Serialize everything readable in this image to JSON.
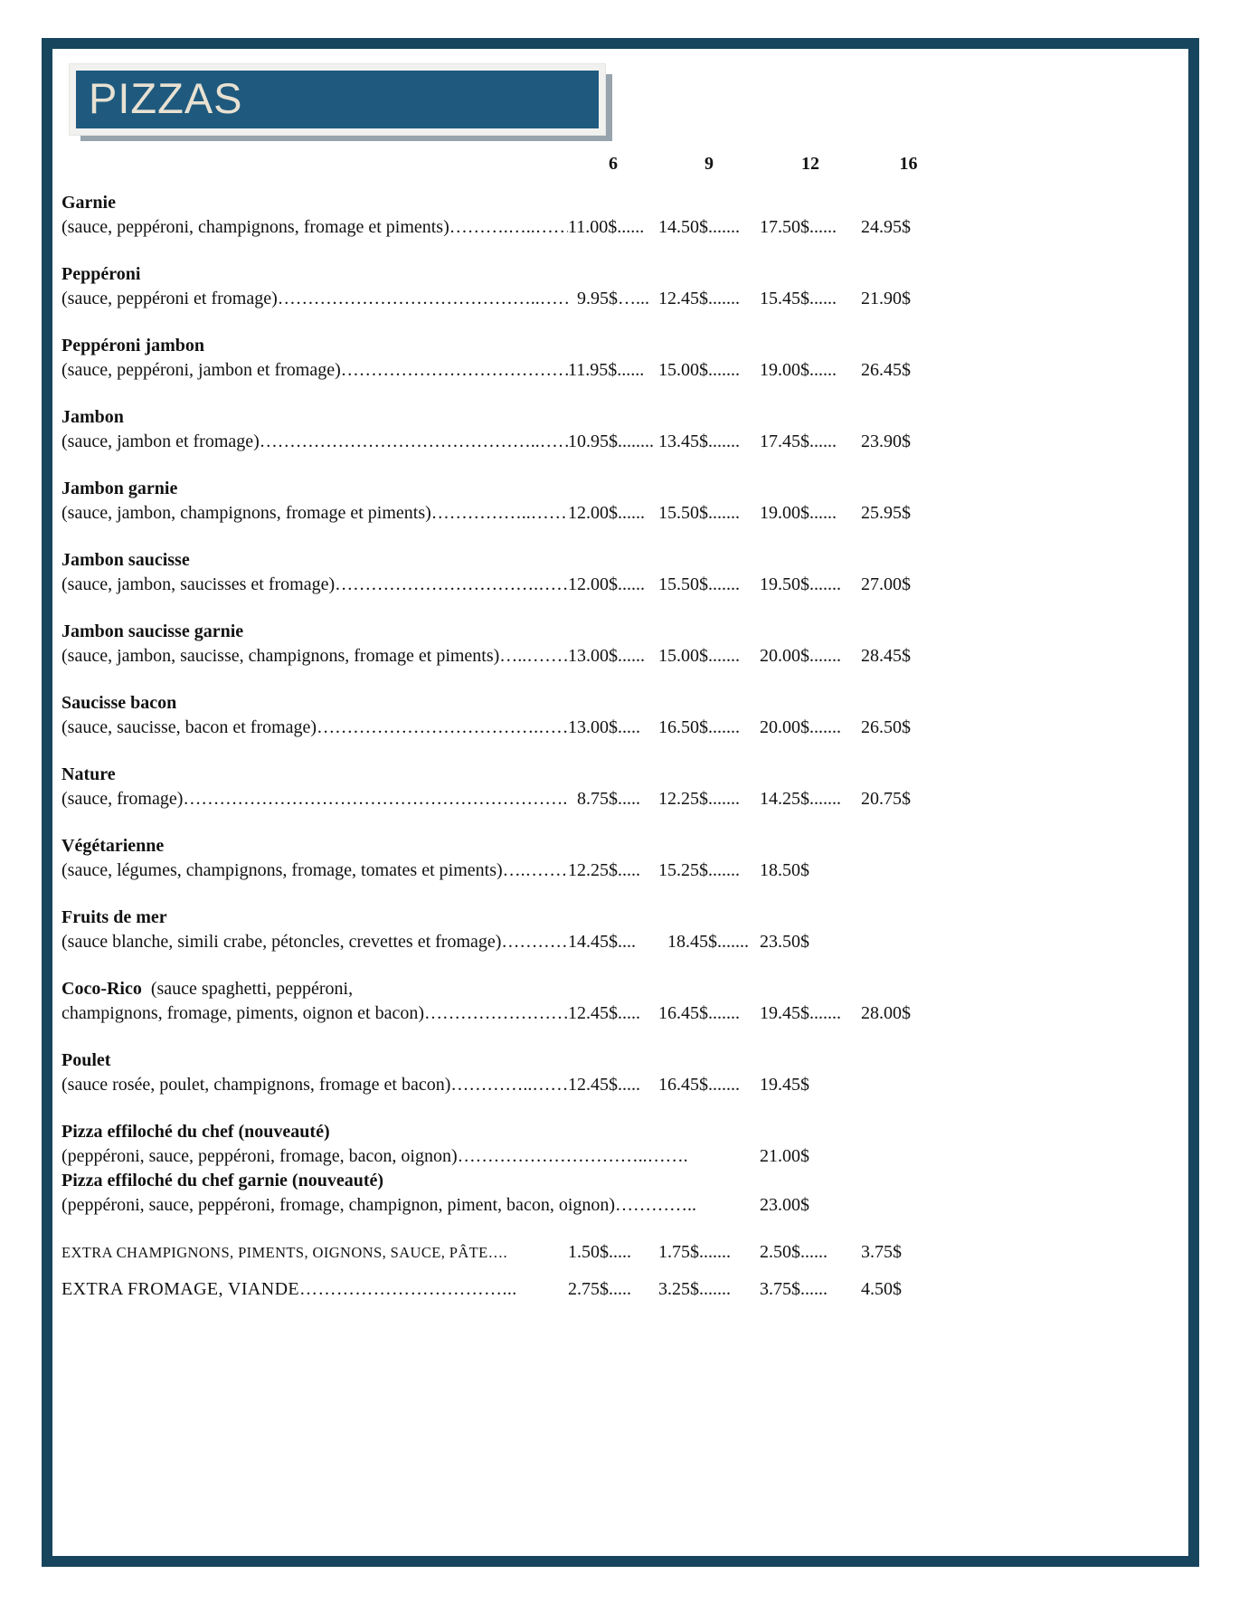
{
  "page": {
    "frame_color": "#17455e",
    "background": "#ffffff"
  },
  "header": {
    "title": "PIZZAS",
    "panel_bg": "#f1f1ef",
    "box_color": "#1f5a7e",
    "title_color": "#e8e1d2",
    "shadow_color": "#97a3ad"
  },
  "sizes": [
    "6",
    "9",
    "12",
    "16"
  ],
  "items": [
    {
      "name": "Garnie",
      "description": "(sauce, peppéroni, champignons, fromage et piments)……….…..………",
      "prices": {
        "6": "11.00$......",
        "9": "14.50$.......",
        "12": "17.50$......",
        "16": "24.95$"
      }
    },
    {
      "name": "Peppéroni",
      "description": "(sauce, peppéroni et fromage)……………………………………..………",
      "prices": {
        "6": "  9.95$…...",
        "9": "12.45$.......",
        "12": "15.45$......",
        "16": "21.90$"
      }
    },
    {
      "name": "Peppéroni jambon",
      "description": "(sauce, peppéroni, jambon et fromage)……………………………………",
      "prices": {
        "6": "11.95$......",
        "9": "15.00$.......",
        "12": "19.00$......",
        "16": "26.45$"
      }
    },
    {
      "name": "Jambon",
      "description": "(sauce, jambon et fromage)………………………………………..…………",
      "prices": {
        "6": "10.95$........",
        "9": "13.45$.......",
        "12": "17.45$......",
        "16": "23.90$"
      }
    },
    {
      "name": "Jambon garnie",
      "description": "(sauce, jambon, champignons, fromage et piments)……………..…………",
      "prices": {
        "6": "12.00$......",
        "9": "15.50$.......",
        "12": "19.00$......",
        "16": "25.95$"
      }
    },
    {
      "name": "Jambon saucisse",
      "description": "(sauce, jambon, saucisses et fromage)…………………………….…………",
      "prices": {
        "6": "12.00$......",
        "9": "15.50$.......",
        "12": "19.50$.......",
        "16": "27.00$"
      }
    },
    {
      "name": "Jambon saucisse garnie",
      "description": "(sauce, jambon, saucisse, champignons, fromage et piments)…..…………",
      "prices": {
        "6": "13.00$......",
        "9": "15.00$.......",
        "12": "20.00$.......",
        "16": "28.45$"
      }
    },
    {
      "name": "Saucisse bacon",
      "description": "(sauce, saucisse, bacon et fromage)……………………………….…………",
      "prices": {
        "6": "13.00$.....",
        "9": "16.50$.......",
        "12": "20.00$.......",
        "16": "26.50$"
      }
    },
    {
      "name": "Nature",
      "description": "(sauce, fromage)………………………………………………………...………",
      "prices": {
        "6": "  8.75$.....",
        "9": "12.25$.......",
        "12": "14.25$.......",
        "16": "20.75$"
      }
    },
    {
      "name": "Végétarienne",
      "description": "(sauce, légumes, champignons, fromage, tomates et piments)….…………",
      "prices": {
        "6": "12.25$.....",
        "9": "15.25$.......",
        "12": "18.50$"
      }
    },
    {
      "name": "Fruits de mer",
      "description": "(sauce blanche, simili crabe, pétoncles, crevettes et fromage)……………",
      "prices": {
        "6": "14.45$....",
        "9": "  18.45$.......",
        "12": "23.50$"
      }
    },
    {
      "name": "Coco-Rico",
      "name_suffix": "  (sauce spaghetti, peppéroni,",
      "description": "champignons, fromage, piments, oignon et bacon)………………………..",
      "prices": {
        "6": "12.45$.....",
        "9": "16.45$.......",
        "12": "19.45$.......",
        "16": "28.00$"
      }
    },
    {
      "name": "Poulet",
      "description": "(sauce rosée, poulet, champignons, fromage et bacon)…………..…………",
      "prices": {
        "6": "12.45$.....",
        "9": "16.45$.......",
        "12": "19.45$"
      }
    },
    {
      "name": "Pizza effiloché du chef (nouveauté)",
      "description": "(peppéroni, sauce, peppéroni, fromage, bacon, oignon)…………………………..…….",
      "prices": {
        "12": "21.00$"
      },
      "compact": true
    },
    {
      "name": "Pizza effiloché du chef garnie (nouveauté)",
      "description": "(peppéroni, sauce, peppéroni, fromage, champignon, piment, bacon, oignon)…………..",
      "prices": {
        "12": "23.00$"
      }
    }
  ],
  "extras": [
    {
      "label": "EXTRA CHAMPIGNONS, PIMENTS, OIGNONS, SAUCE, PÂTE….",
      "prices": {
        "6": "1.50$.....",
        "9": "1.75$.......",
        "12": "2.50$......",
        "16": "3.75$"
      },
      "small": true
    },
    {
      "label": "EXTRA FROMAGE, VIANDE……………………………...",
      "prices": {
        "6": "2.75$.....",
        "9": "3.25$.......",
        "12": "3.75$......",
        "16": "4.50$"
      }
    }
  ]
}
